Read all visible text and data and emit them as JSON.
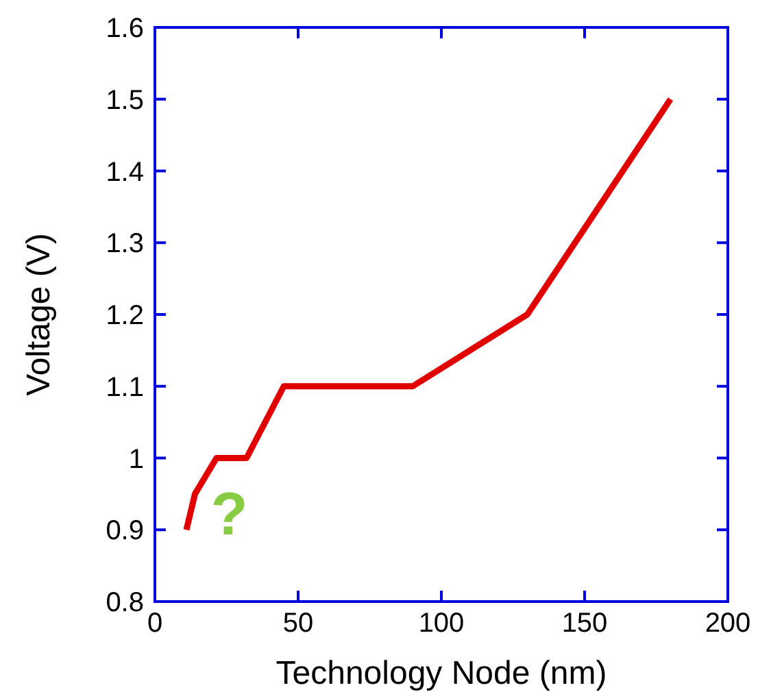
{
  "chart_data": {
    "type": "line",
    "xlabel": "Technology Node (nm)",
    "ylabel": "Voltage (V)",
    "x": [
      11,
      14,
      21.5,
      32,
      45,
      90,
      130,
      180
    ],
    "series": [
      {
        "color": "#e00000",
        "values": [
          0.9,
          0.95,
          1.0,
          1.0,
          1.1,
          1.1,
          1.2,
          1.5
        ]
      }
    ],
    "xlim": [
      0,
      200
    ],
    "xticks": [
      0,
      50,
      100,
      150,
      200
    ],
    "ylim": [
      0.8,
      1.6
    ],
    "yticks": [
      0.8,
      0.9,
      1,
      1.1,
      1.2,
      1.3,
      1.4,
      1.5,
      1.6
    ],
    "annotations": [
      "?"
    ],
    "grid": false,
    "marker": "none",
    "line_style": "solid"
  }
}
